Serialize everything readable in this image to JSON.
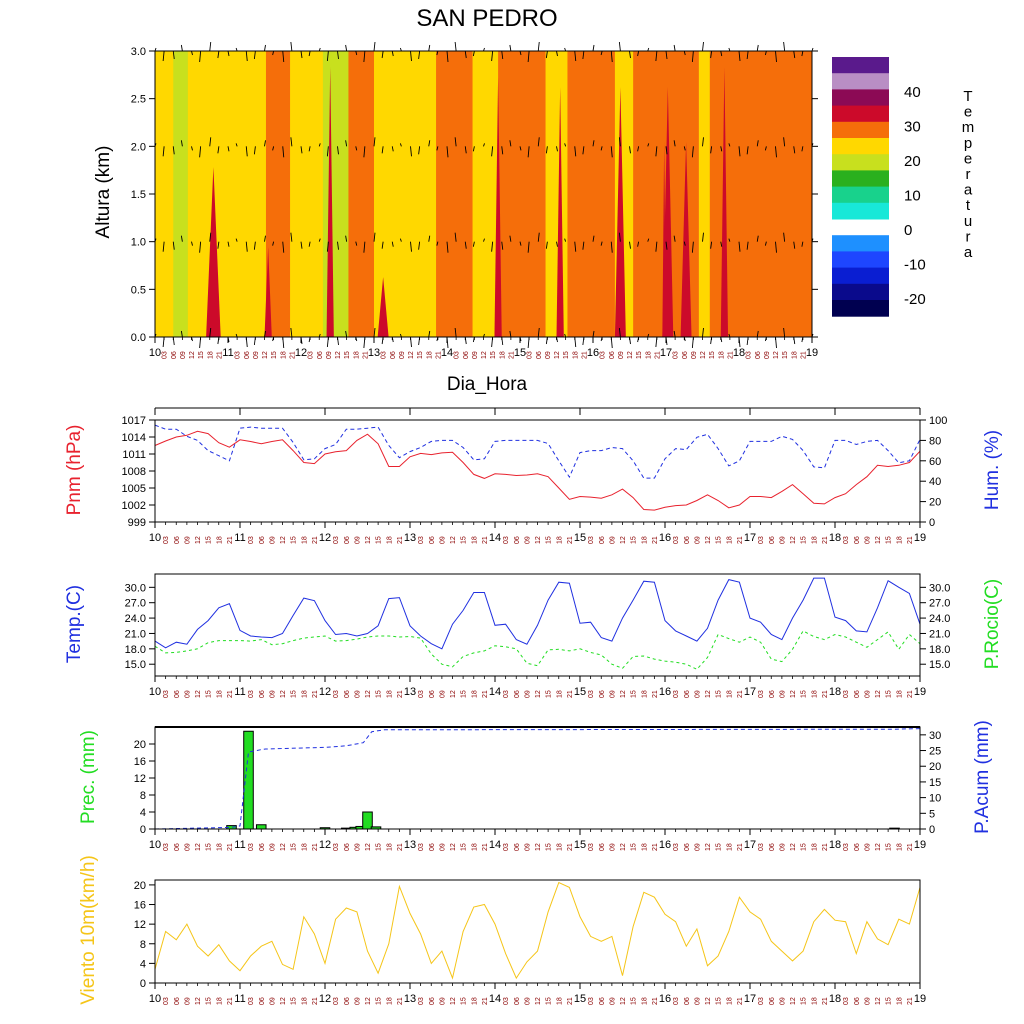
{
  "title": "SAN PEDRO",
  "days": [
    "10",
    "11",
    "12",
    "13",
    "14",
    "15",
    "16",
    "17",
    "18",
    "19"
  ],
  "hours": [
    "03",
    "06",
    "09",
    "12",
    "15",
    "18",
    "21"
  ],
  "colors": {
    "red": "#e8222e",
    "blue": "#2030e0",
    "green": "#22dd22",
    "yellow": "#f5c518",
    "hourText": "#8b0000"
  },
  "chart_data": [
    {
      "type": "heatmap",
      "name": "temperature-cross-section",
      "title": "SAN PEDRO",
      "xlabel": "Dia_Hora",
      "ylabel": "Altura (km)",
      "ylim": [
        0,
        3
      ],
      "yticks": [
        "0.0",
        "0.5",
        "1.0",
        "1.5",
        "2.0",
        "2.5",
        "3.0"
      ],
      "colorbar": {
        "label": "Temperatura",
        "labels": [
          "40",
          "30",
          "20",
          "10",
          "0",
          "-10",
          "-20"
        ],
        "colors": [
          "#5a1a8c",
          "#b98ec4",
          "#8c0a55",
          "#cc0a2a",
          "#f56e0a",
          "#ffd800",
          "#c8e01e",
          "#2ab01e",
          "#18d28c",
          "#18e8d8",
          "#ffffff",
          "#1e90ff",
          "#1e46ff",
          "#0a1ed2",
          "#0a0a8c",
          "#000050"
        ]
      },
      "bands": [
        {
          "d": 0.0,
          "c": "#ffd800"
        },
        {
          "d": 0.25,
          "c": "#c8e01e"
        },
        {
          "d": 0.45,
          "c": "#ffd800"
        },
        {
          "d": 1.52,
          "c": "#f56e0a"
        },
        {
          "d": 1.85,
          "c": "#ffd800"
        },
        {
          "d": 2.3,
          "c": "#c8e01e"
        },
        {
          "d": 2.65,
          "c": "#f56e0a"
        },
        {
          "d": 3.0,
          "c": "#ffd800"
        },
        {
          "d": 3.45,
          "c": "#ffd800"
        },
        {
          "d": 3.85,
          "c": "#f56e0a"
        },
        {
          "d": 4.35,
          "c": "#ffd800"
        },
        {
          "d": 4.7,
          "c": "#f56e0a"
        },
        {
          "d": 5.35,
          "c": "#ffd800"
        },
        {
          "d": 5.65,
          "c": "#f56e0a"
        },
        {
          "d": 6.3,
          "c": "#ffd800"
        },
        {
          "d": 6.55,
          "c": "#f56e0a"
        },
        {
          "d": 7.45,
          "c": "#ffd800"
        },
        {
          "d": 7.6,
          "c": "#f56e0a"
        }
      ],
      "series": [
        {
          "name": "wind-3.0km",
          "level": 3.0
        },
        {
          "name": "wind-2.0km",
          "level": 2.0
        },
        {
          "name": "wind-1.0km",
          "level": 1.0
        },
        {
          "name": "wind-0.0km",
          "level": 0.0
        }
      ]
    },
    {
      "type": "line",
      "name": "pressure-humidity",
      "ylabel_left": "Pnm (hPa)",
      "ylabel_right": "Hum. (%)",
      "ylim_left": [
        999,
        1017
      ],
      "ylim_right": [
        0,
        100
      ],
      "yticks_left": [
        "999",
        "1002",
        "1005",
        "1008",
        "1011",
        "1014",
        "1017"
      ],
      "yticks_right": [
        "0",
        "20",
        "40",
        "60",
        "80",
        "100"
      ],
      "x_days": [
        0,
        0.125,
        0.25,
        0.375,
        0.5,
        0.625,
        0.75,
        0.875,
        1,
        1.125,
        1.25,
        1.375,
        1.5,
        1.625,
        1.75,
        1.875,
        2,
        2.125,
        2.25,
        2.375,
        2.5,
        2.625,
        2.75,
        2.875,
        3,
        3.125,
        3.25,
        3.375,
        3.5,
        3.625,
        3.75,
        3.875,
        4,
        4.125,
        4.25,
        4.375,
        4.5,
        4.625,
        4.75,
        4.875,
        5,
        5.125,
        5.25,
        5.375,
        5.5,
        5.625,
        5.75,
        5.875,
        6,
        6.125,
        6.25,
        6.375,
        6.5,
        6.625,
        6.75,
        6.875,
        7,
        7.125,
        7.25,
        7.375,
        7.5,
        7.625,
        7.75,
        7.875,
        8,
        8.125,
        8.25,
        8.375,
        8.5,
        8.625,
        8.75,
        8.875,
        9
      ],
      "series": [
        {
          "name": "Pnm (hPa)",
          "axis": "left",
          "color": "#e8222e",
          "dash": "",
          "values": [
            1012.5,
            1013.3,
            1014.0,
            1014.3,
            1015.0,
            1014.6,
            1013.0,
            1012.2,
            1013.5,
            1013.2,
            1012.8,
            1013.2,
            1013.5,
            1011.6,
            1009.5,
            1009.3,
            1011.0,
            1011.4,
            1011.6,
            1013.4,
            1014.5,
            1012.8,
            1008.8,
            1008.8,
            1010.5,
            1011.1,
            1010.9,
            1011.2,
            1011.3,
            1009.5,
            1007.4,
            1006.7,
            1007.5,
            1007.4,
            1007.2,
            1007.3,
            1007.5,
            1007.0,
            1005.0,
            1003.0,
            1003.5,
            1003.4,
            1003.2,
            1003.8,
            1004.8,
            1003.3,
            1001.2,
            1001.1,
            1001.6,
            1001.9,
            1002.0,
            1002.8,
            1003.8,
            1002.8,
            1001.5,
            1002.0,
            1003.5,
            1003.5,
            1003.3,
            1004.4,
            1005.6,
            1004.0,
            1002.3,
            1002.2,
            1003.3,
            1004.0,
            1005.6,
            1007.0,
            1009.0,
            1008.8,
            1009.0,
            1009.5,
            1011.5
          ]
        },
        {
          "name": "Hum. (%)",
          "axis": "right",
          "color": "#2030e0",
          "dash": "4 3",
          "values": [
            95,
            91,
            91,
            84,
            80,
            70,
            65,
            60,
            92,
            93,
            92,
            92,
            92,
            78,
            61,
            62,
            72,
            76,
            91,
            91,
            92,
            93,
            75,
            63,
            69,
            73,
            79,
            80,
            80,
            73,
            61,
            62,
            79,
            80,
            80,
            80,
            80,
            77,
            60,
            44,
            68,
            70,
            70,
            73,
            72,
            60,
            43,
            43,
            62,
            72,
            71,
            83,
            86,
            72,
            55,
            60,
            79,
            79,
            79,
            84,
            81,
            70,
            54,
            53,
            80,
            80,
            76,
            79,
            80,
            70,
            58,
            60,
            81
          ]
        }
      ]
    },
    {
      "type": "line",
      "name": "temperature-dewpoint",
      "ylabel_left": "Temp.(C)",
      "ylabel_right": "P.Rocio(C)",
      "ylim": [
        12.7,
        32.6
      ],
      "yticks": [
        "15.0",
        "18.0",
        "21.0",
        "24.0",
        "27.0",
        "30.0"
      ],
      "x_days": [
        0,
        0.125,
        0.25,
        0.375,
        0.5,
        0.625,
        0.75,
        0.875,
        1,
        1.125,
        1.25,
        1.375,
        1.5,
        1.625,
        1.75,
        1.875,
        2,
        2.125,
        2.25,
        2.375,
        2.5,
        2.625,
        2.75,
        2.875,
        3,
        3.125,
        3.25,
        3.375,
        3.5,
        3.625,
        3.75,
        3.875,
        4,
        4.125,
        4.25,
        4.375,
        4.5,
        4.625,
        4.75,
        4.875,
        5,
        5.125,
        5.25,
        5.375,
        5.5,
        5.625,
        5.75,
        5.875,
        6,
        6.125,
        6.25,
        6.375,
        6.5,
        6.625,
        6.75,
        6.875,
        7,
        7.125,
        7.25,
        7.375,
        7.5,
        7.625,
        7.75,
        7.875,
        8,
        8.125,
        8.25,
        8.375,
        8.5,
        8.625,
        8.75,
        8.875,
        9
      ],
      "series": [
        {
          "name": "Temp.(C)",
          "color": "#2030e0",
          "dash": "",
          "values": [
            19.5,
            18.2,
            19.3,
            18.9,
            21.8,
            23.5,
            26.0,
            26.8,
            21.6,
            20.5,
            20.3,
            20.2,
            21.0,
            24.5,
            27.9,
            27.4,
            23.5,
            20.8,
            21.0,
            20.5,
            21.0,
            22.5,
            27.8,
            28.0,
            22.5,
            20.5,
            19.0,
            18.0,
            22.8,
            25.5,
            29.0,
            29.0,
            22.6,
            22.8,
            19.8,
            18.9,
            22.6,
            27.5,
            31.0,
            30.8,
            23.0,
            23.2,
            20.2,
            19.5,
            24.0,
            27.5,
            31.2,
            31.0,
            23.5,
            21.5,
            20.5,
            19.5,
            22.0,
            27.5,
            31.5,
            31.0,
            24.0,
            23.2,
            20.8,
            19.8,
            24.0,
            27.5,
            31.8,
            31.8,
            24.2,
            23.5,
            21.5,
            21.3,
            26.0,
            31.3,
            30.0,
            28.8,
            22.8
          ]
        },
        {
          "name": "P.Rocio(C)",
          "color": "#22dd22",
          "dash": "3 3",
          "values": [
            18.5,
            17.2,
            17.3,
            17.6,
            18.0,
            19.2,
            19.6,
            19.6,
            19.6,
            19.5,
            19.8,
            18.8,
            19.0,
            19.6,
            20.1,
            20.3,
            20.5,
            19.5,
            19.6,
            19.9,
            20.3,
            20.5,
            20.5,
            20.3,
            20.4,
            20.1,
            17.0,
            15.0,
            14.5,
            16.5,
            17.2,
            17.6,
            18.6,
            18.4,
            18.0,
            15.2,
            14.7,
            17.8,
            17.9,
            17.6,
            18.0,
            17.3,
            16.8,
            15.0,
            14.2,
            16.5,
            16.6,
            16.0,
            15.6,
            15.4,
            15.0,
            14.0,
            16.3,
            20.8,
            20.0,
            19.3,
            20.3,
            19.3,
            16.0,
            15.5,
            17.9,
            21.5,
            20.4,
            19.8,
            20.8,
            20.3,
            19.3,
            18.3,
            19.8,
            21.3,
            17.9,
            20.8,
            19.0
          ]
        }
      ]
    },
    {
      "type": "bar",
      "name": "precipitation",
      "ylabel_left": "Prec. (mm)",
      "ylabel_right": "P.Acum (mm)",
      "ylim_left": [
        0,
        24
      ],
      "ylim_right": [
        0,
        32.5
      ],
      "yticks_left": [
        "0",
        "4",
        "8",
        "12",
        "16",
        "20"
      ],
      "yticks_right": [
        "0",
        "5",
        "10",
        "15",
        "20",
        "25",
        "30"
      ],
      "bars": [
        {
          "x": 0.9,
          "value": 0.8
        },
        {
          "x": 1.1,
          "value": 23
        },
        {
          "x": 1.25,
          "value": 1.0
        },
        {
          "x": 2.0,
          "value": 0.3
        },
        {
          "x": 2.25,
          "value": 0.2
        },
        {
          "x": 2.35,
          "value": 0.4
        },
        {
          "x": 2.42,
          "value": 0.6
        },
        {
          "x": 2.5,
          "value": 4.0
        },
        {
          "x": 2.6,
          "value": 0.5
        },
        {
          "x": 8.7,
          "value": 0.2
        }
      ],
      "bar_color": "#22dd22",
      "accum": {
        "name": "P.Acum (mm)",
        "color": "#2030e0",
        "x_days": [
          0,
          0.9,
          1.0,
          1.1,
          1.25,
          1.3,
          2.0,
          2.25,
          2.45,
          2.55,
          2.7,
          8.7,
          9.0
        ],
        "values": [
          0,
          0.5,
          1.0,
          24.5,
          25.3,
          25.5,
          26.0,
          26.5,
          27.5,
          31.0,
          31.6,
          31.8,
          32.0
        ]
      }
    },
    {
      "type": "line",
      "name": "wind-10m",
      "ylabel": "Viento 10m(km/h)",
      "ylim": [
        0,
        21
      ],
      "yticks": [
        "0",
        "4",
        "8",
        "12",
        "16",
        "20"
      ],
      "x_days": [
        0,
        0.125,
        0.25,
        0.375,
        0.5,
        0.625,
        0.75,
        0.875,
        1,
        1.125,
        1.25,
        1.375,
        1.5,
        1.625,
        1.75,
        1.875,
        2,
        2.125,
        2.25,
        2.375,
        2.5,
        2.625,
        2.75,
        2.875,
        3,
        3.125,
        3.25,
        3.375,
        3.5,
        3.625,
        3.75,
        3.875,
        4,
        4.125,
        4.25,
        4.375,
        4.5,
        4.625,
        4.75,
        4.875,
        5,
        5.125,
        5.25,
        5.375,
        5.5,
        5.625,
        5.75,
        5.875,
        6,
        6.125,
        6.25,
        6.375,
        6.5,
        6.625,
        6.75,
        6.875,
        7,
        7.125,
        7.25,
        7.375,
        7.5,
        7.625,
        7.75,
        7.875,
        8,
        8.125,
        8.25,
        8.375,
        8.5,
        8.625,
        8.75,
        8.875,
        9
      ],
      "series": [
        {
          "name": "Viento 10m(km/h)",
          "color": "#f5c518",
          "dash": "",
          "values": [
            2.8,
            10.5,
            8.8,
            12.0,
            7.5,
            5.5,
            7.8,
            4.5,
            2.5,
            5.5,
            7.5,
            8.5,
            3.8,
            2.8,
            13.5,
            10.0,
            4.0,
            13.0,
            15.3,
            14.5,
            6.5,
            2.0,
            8.0,
            19.7,
            14.2,
            10.0,
            4.0,
            6.5,
            1.0,
            10.5,
            15.5,
            16.0,
            12.0,
            6.0,
            1.0,
            4.3,
            6.5,
            14.5,
            20.5,
            19.5,
            13.5,
            9.5,
            8.5,
            9.5,
            1.5,
            11.5,
            18.5,
            17.5,
            14.0,
            12.5,
            7.5,
            11.0,
            3.5,
            5.5,
            10.5,
            17.5,
            14.5,
            13.0,
            8.5,
            6.5,
            4.5,
            6.5,
            12.5,
            15.0,
            12.8,
            12.5,
            6.0,
            12.5,
            9.0,
            7.8,
            13.0,
            12.0,
            19.5
          ]
        }
      ]
    }
  ]
}
